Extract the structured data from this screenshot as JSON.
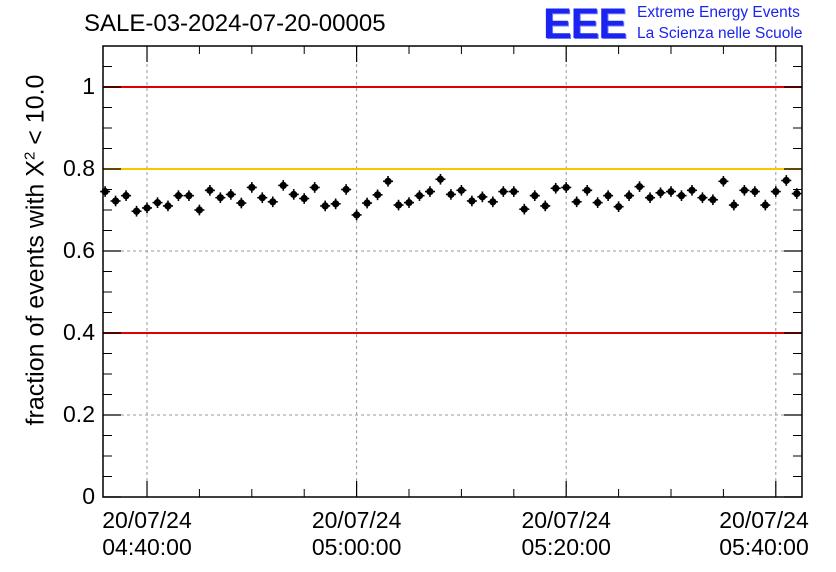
{
  "chart_data": {
    "type": "scatter",
    "title": "SALE-03-2024-07-20-00005",
    "ylabel_prefix": "fraction of events with X",
    "ylabel_exponent": "2",
    "ylabel_suffix": " < 10.0",
    "ylim": [
      0,
      1.1
    ],
    "yticks": [
      {
        "value": 0,
        "label": "0"
      },
      {
        "value": 0.2,
        "label": "0.2"
      },
      {
        "value": 0.4,
        "label": "0.4"
      },
      {
        "value": 0.6,
        "label": "0.6"
      },
      {
        "value": 0.8,
        "label": "0.8"
      },
      {
        "value": 1,
        "label": "1"
      }
    ],
    "xlim_minutes": [
      -4.2,
      62.5
    ],
    "xticks": [
      {
        "minute": 0,
        "date": "20/07/24",
        "time": "04:40:00"
      },
      {
        "minute": 20,
        "date": "20/07/24",
        "time": "05:00:00"
      },
      {
        "minute": 40,
        "date": "20/07/24",
        "time": "05:20:00"
      },
      {
        "minute": 60,
        "date": "20/07/24",
        "time": "05:40:00"
      }
    ],
    "grid": true,
    "reference_lines": [
      {
        "value": 1.0,
        "color": "#e00000"
      },
      {
        "value": 0.8,
        "color": "#ffc400"
      },
      {
        "value": 0.4,
        "color": "#e00000"
      }
    ],
    "x_start_minute": -4.0,
    "x_step_minutes": 1.0,
    "point_y_error": 0.013,
    "values": [
      0.745,
      0.722,
      0.735,
      0.697,
      0.705,
      0.718,
      0.71,
      0.735,
      0.735,
      0.7,
      0.748,
      0.73,
      0.738,
      0.717,
      0.755,
      0.73,
      0.72,
      0.76,
      0.738,
      0.728,
      0.755,
      0.71,
      0.715,
      0.75,
      0.688,
      0.717,
      0.737,
      0.77,
      0.712,
      0.718,
      0.735,
      0.745,
      0.775,
      0.738,
      0.748,
      0.722,
      0.732,
      0.72,
      0.745,
      0.745,
      0.702,
      0.735,
      0.71,
      0.753,
      0.755,
      0.72,
      0.748,
      0.718,
      0.735,
      0.708,
      0.735,
      0.757,
      0.73,
      0.742,
      0.745,
      0.735,
      0.748,
      0.73,
      0.725,
      0.77,
      0.712,
      0.748,
      0.745,
      0.712,
      0.745,
      0.772,
      0.74
    ],
    "marker_color": "#000000"
  },
  "logo": {
    "mark": "EEE",
    "line1": "Extreme Energy Events",
    "line2": "La Scienza nelle Scuole",
    "color": "#1a24f0"
  }
}
